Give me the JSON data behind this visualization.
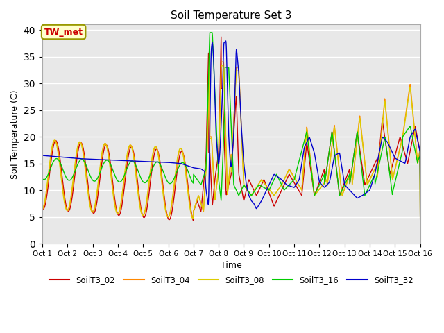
{
  "title": "Soil Temperature Set 3",
  "xlabel": "Time",
  "ylabel": "Soil Temperature (C)",
  "ylim": [
    0,
    41
  ],
  "yticks": [
    0,
    5,
    10,
    15,
    20,
    25,
    30,
    35,
    40
  ],
  "bg_color": "#e8e8e8",
  "series_colors": {
    "SoilT3_02": "#cc0000",
    "SoilT3_04": "#ff8800",
    "SoilT3_08": "#ddcc00",
    "SoilT3_16": "#00cc00",
    "SoilT3_32": "#0000cc"
  },
  "annotation_text": "TW_met",
  "annotation_color": "#cc0000",
  "annotation_bg": "#ffffcc",
  "annotation_border": "#999900",
  "figsize": [
    6.4,
    4.8
  ],
  "dpi": 100
}
